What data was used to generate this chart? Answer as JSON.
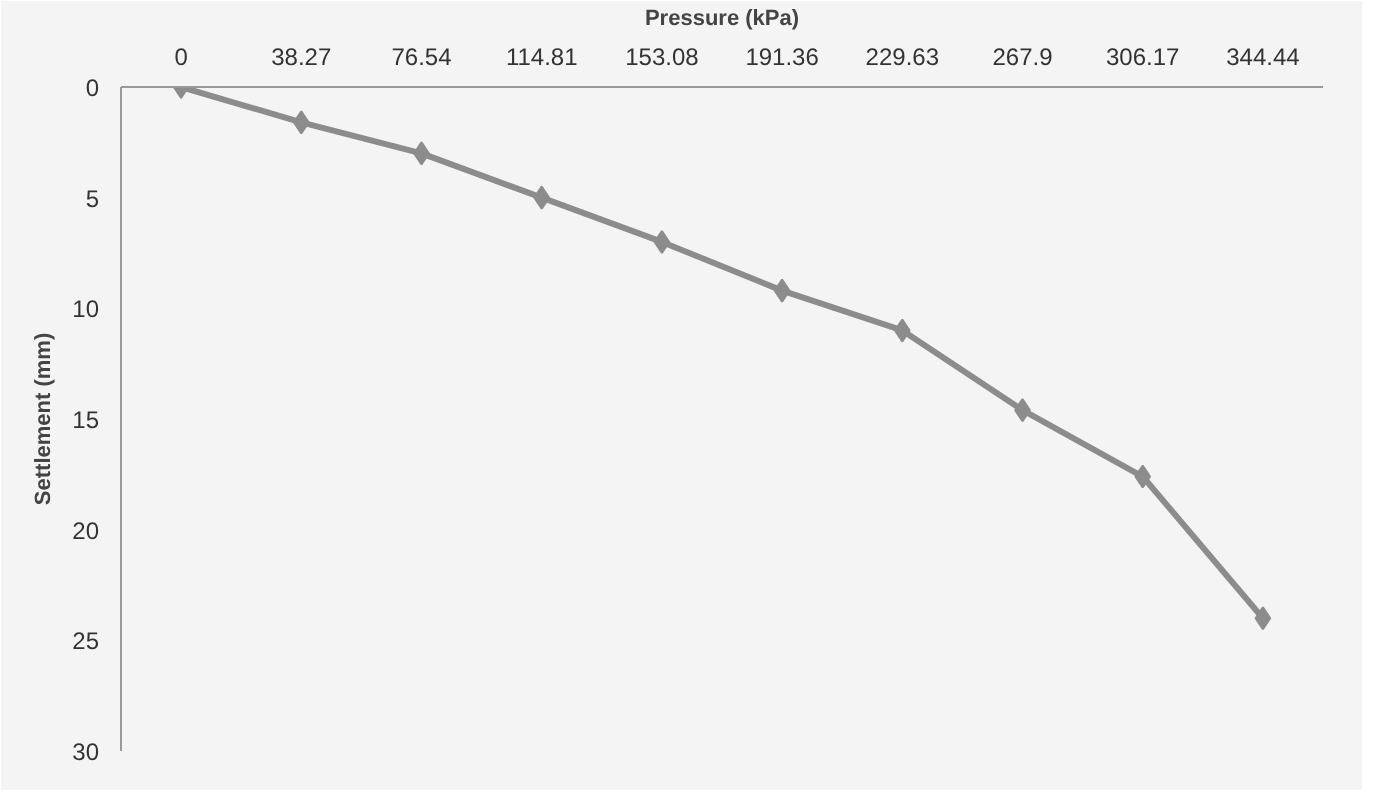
{
  "chart_data": {
    "type": "line",
    "xlabel": "Pressure (kPa)",
    "ylabel": "Settlement (mm)",
    "categories": [
      "0",
      "38.27",
      "76.54",
      "114.81",
      "153.08",
      "191.36",
      "229.63",
      "267.9",
      "306.17",
      "344.44"
    ],
    "series": [
      {
        "color": "#8c8c8c",
        "values": [
          0,
          1.6,
          3.0,
          5.0,
          7.0,
          9.2,
          11.0,
          14.6,
          17.6,
          24.0
        ]
      }
    ],
    "ylim": [
      30,
      0
    ],
    "yticks": [
      0,
      5,
      10,
      15,
      20,
      25,
      30
    ],
    "marker": "diamond",
    "line_style": "solid",
    "grid": false
  }
}
